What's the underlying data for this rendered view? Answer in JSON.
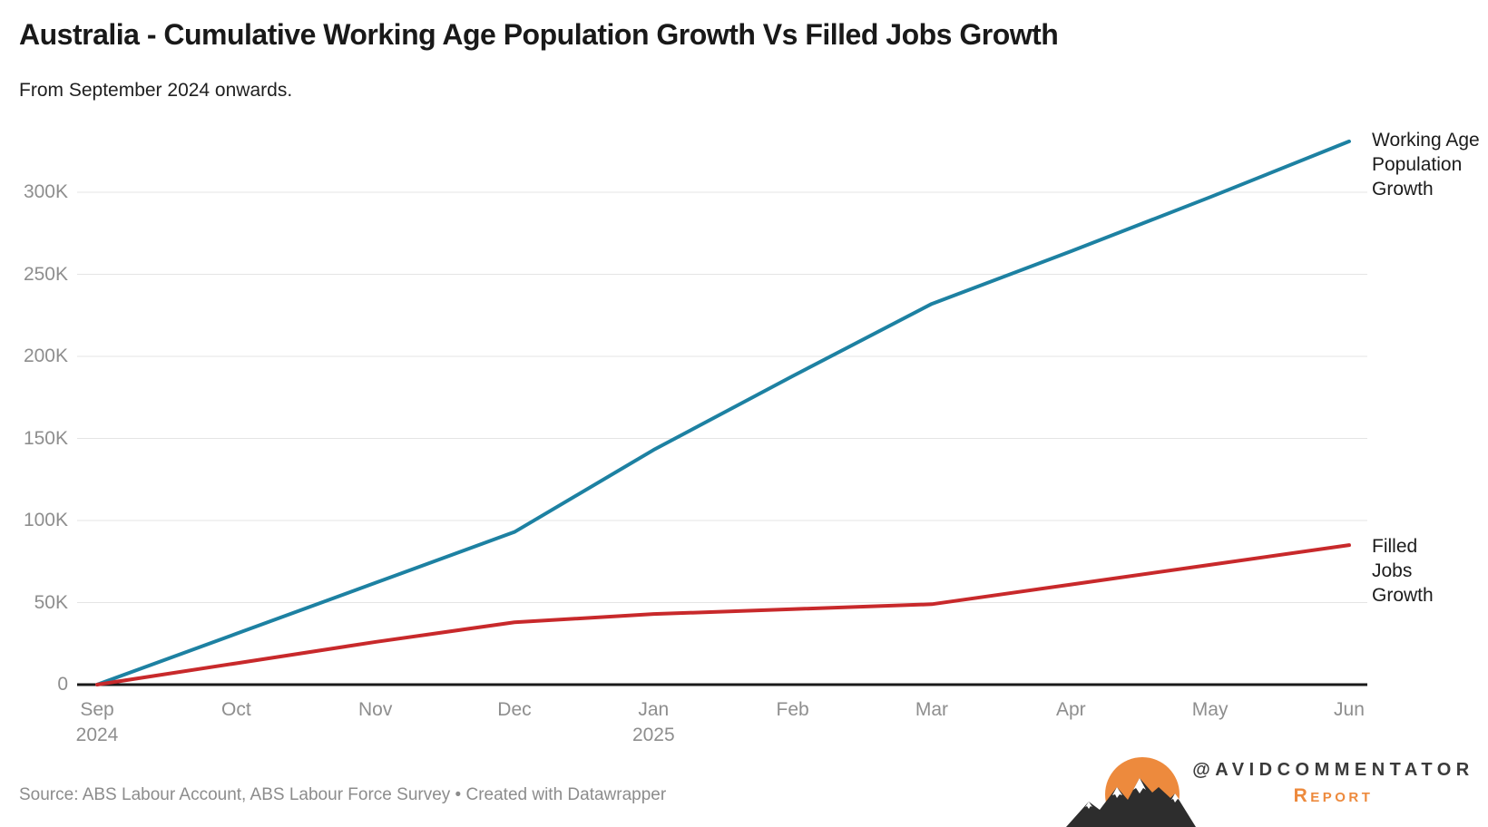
{
  "header": {
    "title": "Australia - Cumulative Working Age Population Growth Vs Filled Jobs Growth",
    "subtitle": "From September 2024 onwards."
  },
  "chart_data": {
    "type": "line",
    "categories": [
      "Sep 2024",
      "Oct 2024",
      "Nov 2024",
      "Dec 2024",
      "Jan 2025",
      "Feb 2025",
      "Mar 2025",
      "Apr 2025",
      "May 2025",
      "Jun 2025"
    ],
    "x_ticks": [
      {
        "label": "Sep",
        "year": "2024"
      },
      {
        "label": "Oct"
      },
      {
        "label": "Nov"
      },
      {
        "label": "Dec"
      },
      {
        "label": "Jan",
        "year": "2025"
      },
      {
        "label": "Feb"
      },
      {
        "label": "Mar"
      },
      {
        "label": "Apr"
      },
      {
        "label": "May"
      },
      {
        "label": "Jun"
      }
    ],
    "y_ticks": [
      {
        "value": 0,
        "label": "0"
      },
      {
        "value": 50000,
        "label": "50K"
      },
      {
        "value": 100000,
        "label": "100K"
      },
      {
        "value": 150000,
        "label": "150K"
      },
      {
        "value": 200000,
        "label": "200K"
      },
      {
        "value": 250000,
        "label": "250K"
      },
      {
        "value": 300000,
        "label": "300K"
      }
    ],
    "ylim": [
      0,
      335000
    ],
    "grid": "horizontal",
    "legend_position": "direct-labels-right-of-lines",
    "series": [
      {
        "name": "Working Age Population Growth",
        "color": "#1D81A2",
        "values": [
          0,
          31000,
          62000,
          93000,
          143000,
          188000,
          232000,
          264000,
          297000,
          331000
        ]
      },
      {
        "name": "Filled Jobs Growth",
        "color": "#C8292B",
        "values": [
          0,
          13000,
          26000,
          38000,
          43000,
          46000,
          49000,
          61000,
          73000,
          85000
        ]
      }
    ]
  },
  "footer": {
    "source_line": "Source: ABS Labour Account, ABS Labour Force Survey • Created with Datawrapper"
  },
  "branding": {
    "handle": "@AVIDCOMMENTATOR",
    "wordmark": "Report",
    "logo": "sun-mountains-logo",
    "accent_orange": "#ED8A3D",
    "text_dark": "#3B3B3B"
  }
}
